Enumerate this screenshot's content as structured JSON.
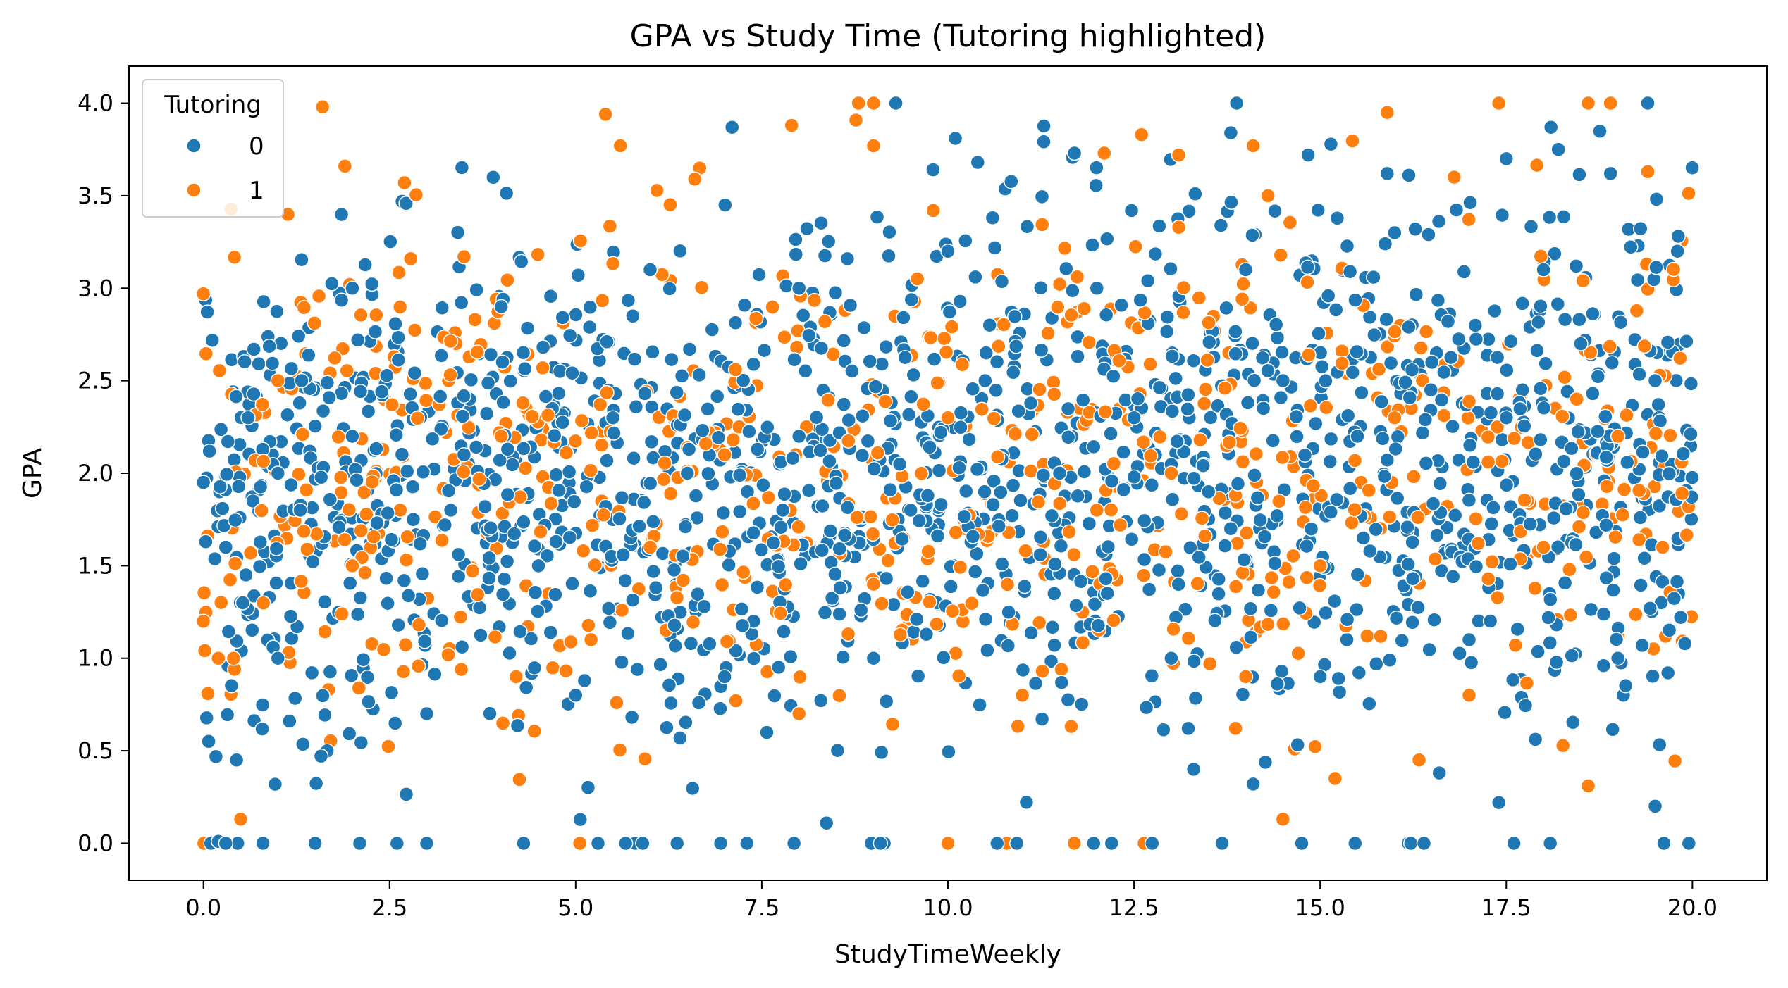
{
  "chart_data": {
    "type": "scatter",
    "title": "GPA vs Study Time (Tutoring highlighted)",
    "xlabel": "StudyTimeWeekly",
    "ylabel": "GPA",
    "xlim": [
      -1.0,
      21.0
    ],
    "ylim": [
      -0.2,
      4.2
    ],
    "xticks": [
      "0.0",
      "2.5",
      "5.0",
      "7.5",
      "10.0",
      "12.5",
      "15.0",
      "17.5",
      "20.0"
    ],
    "yticks": [
      "0.0",
      "0.5",
      "1.0",
      "1.5",
      "2.0",
      "2.5",
      "3.0",
      "3.5",
      "4.0"
    ],
    "grid": false,
    "legend": {
      "title": "Tutoring",
      "placement": "top-left"
    },
    "colors": {
      "0": "#1f77b4",
      "1": "#ff7f0e"
    },
    "point_count_estimate": 2392,
    "point_model": "Dense uniform cloud: StudyTimeWeekly spread over 0-20, GPA spread over 0-4 with slight upward trend; roughly 30% of students have Tutoring = 1",
    "series": [
      {
        "name": "0",
        "color": "#1f77b4",
        "points": [
          [
            9.3,
            4.0
          ],
          [
            19.4,
            4.0
          ],
          [
            7.1,
            3.87
          ],
          [
            18.1,
            3.87
          ],
          [
            13.8,
            3.84
          ],
          [
            10.1,
            3.81
          ],
          [
            18.2,
            3.75
          ],
          [
            11.7,
            3.73
          ],
          [
            17.5,
            3.7
          ],
          [
            15.9,
            3.62
          ],
          [
            18.9,
            3.62
          ],
          [
            9.8,
            3.64
          ],
          [
            10.4,
            3.68
          ],
          [
            0.1,
            0.0
          ],
          [
            0.2,
            0.01
          ],
          [
            0.3,
            0.0
          ],
          [
            0.8,
            0.0
          ],
          [
            1.5,
            0.0
          ],
          [
            2.1,
            0.0
          ],
          [
            2.6,
            0.0
          ],
          [
            3.0,
            0.0
          ],
          [
            4.3,
            0.0
          ],
          [
            5.3,
            0.0
          ],
          [
            5.9,
            0.0
          ],
          [
            7.3,
            0.0
          ],
          [
            19.5,
            0.2
          ],
          [
            17.4,
            0.22
          ],
          [
            16.6,
            0.38
          ],
          [
            13.3,
            0.4
          ],
          [
            14.1,
            0.32
          ],
          [
            0.0,
            1.95
          ],
          [
            0.3,
            1.6
          ],
          [
            0.6,
            2.3
          ],
          [
            1.0,
            2.0
          ],
          [
            1.3,
            1.8
          ],
          [
            2.0,
            2.2
          ],
          [
            3.5,
            2.1
          ],
          [
            4.5,
            1.5
          ],
          [
            5.5,
            2.3
          ],
          [
            6.5,
            2.0
          ],
          [
            8.0,
            2.2
          ],
          [
            9.5,
            1.8
          ],
          [
            10.5,
            2.5
          ],
          [
            11.5,
            2.0
          ],
          [
            12.5,
            2.3
          ],
          [
            13.5,
            1.9
          ],
          [
            14.5,
            2.5
          ],
          [
            15.5,
            2.2
          ],
          [
            16.5,
            2.6
          ],
          [
            17.5,
            2.3
          ],
          [
            18.5,
            2.7
          ],
          [
            19.5,
            2.5
          ],
          [
            1.0,
            1.0
          ],
          [
            3.0,
            0.7
          ],
          [
            5.0,
            0.8
          ],
          [
            7.0,
            0.9
          ],
          [
            9.0,
            1.0
          ],
          [
            11.0,
            0.8
          ],
          [
            13.0,
            1.0
          ],
          [
            15.0,
            0.9
          ],
          [
            17.0,
            1.1
          ],
          [
            19.0,
            1.0
          ],
          [
            2.0,
            3.0
          ],
          [
            4.0,
            2.9
          ],
          [
            6.0,
            3.1
          ],
          [
            8.0,
            3.0
          ],
          [
            10.0,
            3.2
          ],
          [
            12.0,
            3.0
          ],
          [
            14.0,
            3.1
          ],
          [
            16.0,
            3.3
          ],
          [
            18.0,
            3.1
          ],
          [
            19.8,
            3.2
          ]
        ]
      },
      {
        "name": "1",
        "color": "#ff7f0e",
        "points": [
          [
            1.6,
            3.98
          ],
          [
            8.8,
            4.0
          ],
          [
            9.0,
            4.0
          ],
          [
            17.4,
            4.0
          ],
          [
            18.6,
            4.0
          ],
          [
            18.9,
            4.0
          ],
          [
            5.4,
            3.94
          ],
          [
            7.9,
            3.88
          ],
          [
            15.9,
            3.95
          ],
          [
            1.9,
            3.66
          ],
          [
            5.6,
            3.77
          ],
          [
            9.0,
            3.77
          ],
          [
            14.1,
            3.77
          ],
          [
            12.1,
            3.73
          ],
          [
            13.1,
            3.72
          ],
          [
            10.0,
            0.0
          ],
          [
            14.5,
            0.13
          ],
          [
            0.5,
            0.13
          ],
          [
            18.6,
            0.31
          ],
          [
            15.2,
            0.35
          ],
          [
            0.0,
            2.97
          ],
          [
            0.0,
            1.2
          ],
          [
            0.2,
            1.0
          ],
          [
            2.7,
            3.57
          ],
          [
            3.5,
            3.17
          ],
          [
            6.6,
            3.59
          ],
          [
            12.6,
            3.83
          ],
          [
            14.3,
            3.5
          ],
          [
            16.8,
            3.6
          ],
          [
            19.4,
            3.63
          ],
          [
            1.0,
            2.5
          ],
          [
            4.0,
            2.2
          ],
          [
            7.0,
            2.1
          ],
          [
            10.0,
            2.3
          ],
          [
            13.0,
            2.0
          ],
          [
            16.0,
            2.3
          ],
          [
            19.0,
            2.2
          ],
          [
            2.0,
            1.5
          ],
          [
            6.0,
            1.6
          ],
          [
            9.0,
            1.4
          ],
          [
            12.0,
            1.8
          ],
          [
            15.0,
            1.5
          ],
          [
            18.0,
            1.6
          ],
          [
            4.2,
            0.9
          ],
          [
            8.0,
            0.7
          ],
          [
            11.0,
            0.8
          ],
          [
            14.0,
            0.9
          ],
          [
            17.0,
            0.8
          ],
          [
            19.6,
            1.6
          ]
        ]
      }
    ]
  }
}
